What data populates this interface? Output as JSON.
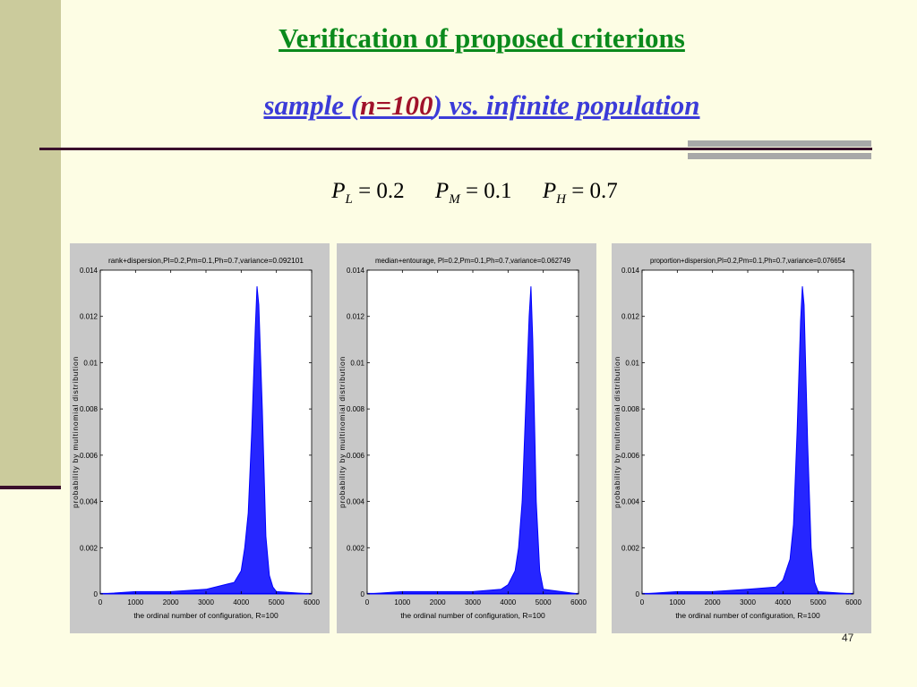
{
  "slide": {
    "title": "Verification of proposed criterions",
    "subtitle_parts": [
      "sample (",
      "n=100",
      ") vs. infinite population"
    ],
    "formula": [
      {
        "sym": "P",
        "sub": "L",
        "eq": "= 0.2"
      },
      {
        "sym": "P",
        "sub": "M",
        "eq": "= 0.1"
      },
      {
        "sym": "P",
        "sub": "H",
        "eq": "= 0.7"
      }
    ],
    "page_number": "47"
  },
  "colors": {
    "title": "#0b8a1c",
    "subtitle": "#3b3bd8",
    "subtitle_highlight": "#a0122a",
    "series": "#0000ff",
    "panel": "#c8c8c8",
    "plot_area": "#ffffff"
  },
  "chart_data": [
    {
      "type": "area",
      "title": "rank+dispersion,Pl=0.2,Pm=0.1,Ph=0.7,variance=0.092101",
      "xlabel": "the ordinal number of configuration,  R=100",
      "ylabel": "probability  by  multinomial distribution",
      "xlim": [
        0,
        6000
      ],
      "ylim": [
        0,
        0.014
      ],
      "xticks": [
        "0",
        "1000",
        "2000",
        "3000",
        "4000",
        "5000",
        "6000"
      ],
      "yticks": [
        "0",
        "0.002",
        "0.004",
        "0.006",
        "0.008",
        "0.01",
        "0.012",
        "0.014"
      ],
      "grid": false,
      "x": [
        0,
        1000,
        2000,
        3000,
        3800,
        4000,
        4100,
        4200,
        4300,
        4400,
        4450,
        4500,
        4600,
        4700,
        4800,
        4900,
        5000,
        6000
      ],
      "y": [
        0,
        0.0001,
        0.0001,
        0.0002,
        0.0005,
        0.001,
        0.002,
        0.0035,
        0.007,
        0.0115,
        0.0133,
        0.0125,
        0.008,
        0.0025,
        0.0008,
        0.0003,
        0.0001,
        0
      ]
    },
    {
      "type": "area",
      "title": "median+entourage, Pl=0.2,Pm=0.1,Ph=0.7,variance=0.062749",
      "xlabel": "the ordinal number of configuration,  R=100",
      "ylabel": "probability  by  multinomial distribution",
      "xlim": [
        0,
        6000
      ],
      "ylim": [
        0,
        0.014
      ],
      "xticks": [
        "0",
        "1000",
        "2000",
        "3000",
        "4000",
        "5000",
        "6000"
      ],
      "yticks": [
        "0",
        "0.002",
        "0.004",
        "0.006",
        "0.008",
        "0.01",
        "0.012",
        "0.014"
      ],
      "grid": false,
      "x": [
        0,
        1000,
        2000,
        3000,
        3800,
        4000,
        4200,
        4300,
        4400,
        4500,
        4600,
        4650,
        4700,
        4800,
        4900,
        5000,
        6000
      ],
      "y": [
        0,
        0.0001,
        0.0001,
        0.0001,
        0.0002,
        0.0004,
        0.001,
        0.002,
        0.004,
        0.008,
        0.012,
        0.0133,
        0.011,
        0.004,
        0.001,
        0.0002,
        0
      ]
    },
    {
      "type": "area",
      "title": "proportion+dispersion,Pl=0.2,Pm=0.1,Ph=0.7,variance=0.076654",
      "xlabel": "the ordinal number of configuration,  R=100",
      "ylabel": "probability  by  multinomial distribution",
      "xlim": [
        0,
        6000
      ],
      "ylim": [
        0,
        0.014
      ],
      "xticks": [
        "0",
        "1000",
        "2000",
        "3000",
        "4000",
        "5000",
        "6000"
      ],
      "yticks": [
        "0",
        "0.002",
        "0.004",
        "0.006",
        "0.008",
        "0.01",
        "0.012",
        "0.014"
      ],
      "grid": false,
      "x": [
        0,
        1000,
        2000,
        3000,
        3800,
        4000,
        4200,
        4300,
        4400,
        4500,
        4550,
        4600,
        4700,
        4800,
        4900,
        5000,
        6000
      ],
      "y": [
        0,
        0.0001,
        0.0001,
        0.0002,
        0.0003,
        0.0006,
        0.0015,
        0.003,
        0.007,
        0.0118,
        0.0133,
        0.0125,
        0.0065,
        0.002,
        0.0005,
        0.0001,
        0
      ]
    }
  ]
}
